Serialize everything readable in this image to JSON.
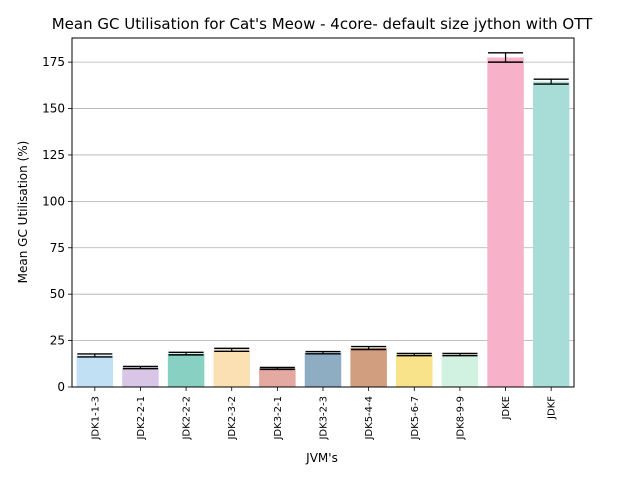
{
  "chart_data": {
    "type": "bar",
    "title": "Mean GC Utilisation for Cat's Meow - 4core- default size jython with OTT",
    "xlabel": "JVM's",
    "ylabel": "Mean GC Utilisation (%)",
    "ylim": [
      0,
      188
    ],
    "yticks": [
      0,
      25,
      50,
      75,
      100,
      125,
      150,
      175
    ],
    "grid": "y",
    "categories": [
      "JDK1-1-3",
      "JDK2-2-1",
      "JDK2-2-2",
      "JDK2-3-2",
      "JDK3-2-1",
      "JDK3-2-3",
      "JDK5-4-4",
      "JDK5-6-7",
      "JDK8-9-9",
      "JDKE",
      "JDKF"
    ],
    "values": [
      17,
      10.5,
      18,
      20,
      10,
      18.5,
      21,
      17.5,
      17.5,
      177.5,
      164.5
    ],
    "errors": [
      0.8,
      0.6,
      0.7,
      0.8,
      0.5,
      0.6,
      0.8,
      0.6,
      0.6,
      2.5,
      1.3
    ],
    "colors": [
      "#c2e0f4",
      "#d9c6e6",
      "#88d0c2",
      "#fbe0b4",
      "#e4a9a0",
      "#8eadc2",
      "#d19f80",
      "#f8e28a",
      "#d2f2e1",
      "#f7b1c8",
      "#a8dcd6"
    ]
  }
}
